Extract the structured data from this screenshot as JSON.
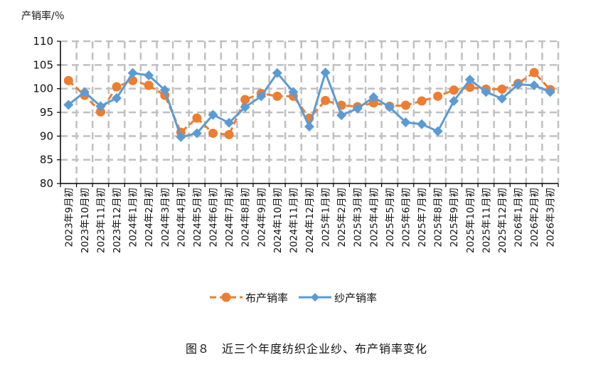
{
  "chart_data": {
    "type": "line",
    "title": "",
    "caption": "图８　近三个年度纺织企业纱、布产销率变化",
    "ylabel": "产销率/％",
    "xlabel": "",
    "ylim": [
      80,
      110
    ],
    "yticks": [
      80,
      85,
      90,
      95,
      100,
      105,
      110
    ],
    "grid": true,
    "legend_position": "bottom",
    "categories": [
      "2023年9月初",
      "2023年10月初",
      "2023年11月初",
      "2023年12月初",
      "2024年1月初",
      "2024年2月初",
      "2024年3月初",
      "2024年4月初",
      "2024年5月初",
      "2024年6月初",
      "2024年7月初",
      "2024年8月初",
      "2024年9月初",
      "2024年10月初",
      "2024年11月初",
      "2024年12月初",
      "2025年1月初",
      "2025年2月初",
      "2025年3月初",
      "2025年4月初",
      "2025年5月初",
      "2025年6月初",
      "2025年7月初",
      "2025年8月初",
      "2025年9月初",
      "2025年10月初",
      "2025年11月初",
      "2025年12月初",
      "2026年1月初",
      "2026年2月初",
      "2026年3月初"
    ],
    "series": [
      {
        "name": "布产销率",
        "color": "#ED7D31",
        "marker": "circle",
        "dashed": true,
        "values": [
          101.7,
          98.6,
          95.1,
          100.4,
          101.7,
          100.7,
          98.6,
          90.8,
          93.8,
          90.6,
          90.3,
          97.7,
          99.0,
          98.4,
          98.4,
          93.8,
          97.5,
          96.5,
          96.2,
          97.0,
          96.3,
          96.5,
          97.4,
          98.4,
          99.7,
          100.3,
          99.9,
          99.9,
          101.1,
          103.4,
          99.8
        ]
      },
      {
        "name": "纱产销率",
        "color": "#5B9BD5",
        "marker": "diamond",
        "dashed": false,
        "values": [
          96.6,
          99.3,
          96.3,
          98.0,
          103.3,
          102.8,
          99.7,
          89.8,
          90.6,
          94.5,
          92.8,
          96.1,
          98.4,
          103.3,
          99.3,
          92.0,
          103.4,
          94.4,
          95.8,
          98.2,
          96.1,
          92.9,
          92.5,
          91.0,
          97.4,
          101.9,
          99.3,
          97.9,
          100.9,
          100.7,
          99.3
        ]
      }
    ]
  }
}
